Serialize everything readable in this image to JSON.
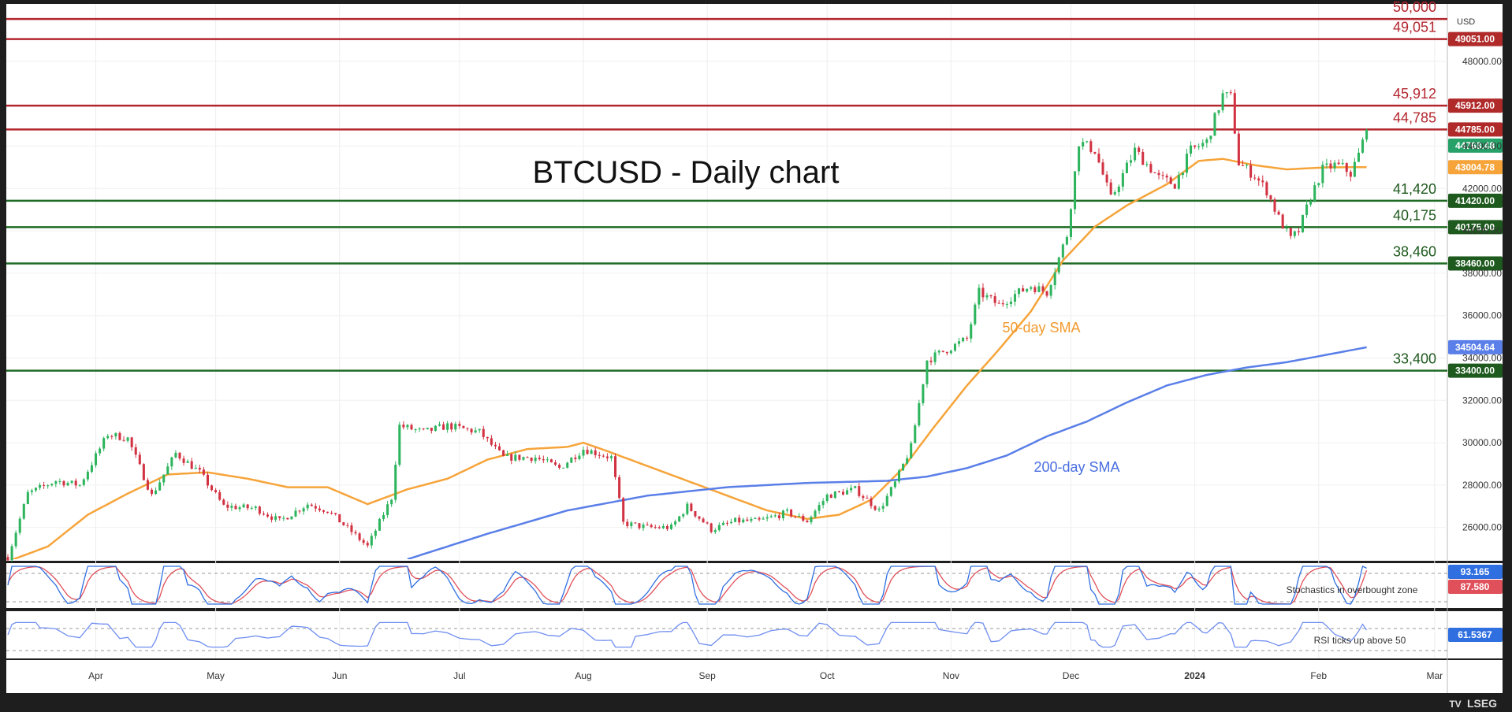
{
  "chart_data": {
    "type": "candlestick",
    "title": "BTCUSD - Daily chart",
    "currency_label": "USD",
    "ylim": [
      24500,
      50600
    ],
    "y_ticks": [
      "26000.00",
      "28000.00",
      "30000.00",
      "32000.00",
      "34000.00",
      "36000.00",
      "38000.00",
      "40000.00",
      "42000.00",
      "44000.00",
      "48000.00"
    ],
    "x_labels": [
      {
        "label": "Apr",
        "day": 22
      },
      {
        "label": "May",
        "day": 52
      },
      {
        "label": "Jun",
        "day": 83
      },
      {
        "label": "Jul",
        "day": 113
      },
      {
        "label": "Aug",
        "day": 144
      },
      {
        "label": "Sep",
        "day": 175
      },
      {
        "label": "Oct",
        "day": 205
      },
      {
        "label": "Nov",
        "day": 236
      },
      {
        "label": "Dec",
        "day": 266
      },
      {
        "label": "2024",
        "day": 297
      },
      {
        "label": "Feb",
        "day": 328
      },
      {
        "label": "Mar",
        "day": 357
      }
    ],
    "last_day": 340,
    "levels": [
      {
        "label": "50,000",
        "value": 50000,
        "badge": "",
        "type": "resistance"
      },
      {
        "label": "49,051",
        "value": 49051,
        "badge": "49051.00",
        "type": "resistance"
      },
      {
        "label": "45,912",
        "value": 45912,
        "badge": "45912.00",
        "type": "resistance"
      },
      {
        "label": "44,785",
        "value": 44785,
        "badge": "44785.00",
        "type": "resistance"
      },
      {
        "label": "41,420",
        "value": 41420,
        "badge": "41420.00",
        "type": "support"
      },
      {
        "label": "40,175",
        "value": 40175,
        "badge": "40175.00",
        "type": "support"
      },
      {
        "label": "38,460",
        "value": 38460,
        "badge": "38460.00",
        "type": "support"
      },
      {
        "label": "33,400",
        "value": 33400,
        "badge": "33400.00",
        "type": "support"
      }
    ],
    "price_keypoints": [
      [
        0,
        24600
      ],
      [
        5,
        27600
      ],
      [
        12,
        28200
      ],
      [
        18,
        28000
      ],
      [
        25,
        30400
      ],
      [
        30,
        30200
      ],
      [
        36,
        27500
      ],
      [
        42,
        29500
      ],
      [
        48,
        28600
      ],
      [
        54,
        27000
      ],
      [
        62,
        26900
      ],
      [
        68,
        26300
      ],
      [
        75,
        27100
      ],
      [
        80,
        26800
      ],
      [
        86,
        25800
      ],
      [
        90,
        25100
      ],
      [
        96,
        27400
      ],
      [
        98,
        30800
      ],
      [
        104,
        30500
      ],
      [
        110,
        30800
      ],
      [
        118,
        30500
      ],
      [
        124,
        29300
      ],
      [
        132,
        29300
      ],
      [
        138,
        28800
      ],
      [
        144,
        29700
      ],
      [
        151,
        29300
      ],
      [
        154,
        26200
      ],
      [
        160,
        26000
      ],
      [
        166,
        26000
      ],
      [
        170,
        27000
      ],
      [
        176,
        25900
      ],
      [
        182,
        26300
      ],
      [
        188,
        26300
      ],
      [
        195,
        26700
      ],
      [
        200,
        26300
      ],
      [
        205,
        27500
      ],
      [
        212,
        27800
      ],
      [
        218,
        26800
      ],
      [
        222,
        28100
      ],
      [
        226,
        29800
      ],
      [
        230,
        33900
      ],
      [
        235,
        34400
      ],
      [
        240,
        34900
      ],
      [
        243,
        37100
      ],
      [
        248,
        36500
      ],
      [
        252,
        37000
      ],
      [
        256,
        37400
      ],
      [
        260,
        37100
      ],
      [
        265,
        39800
      ],
      [
        268,
        44200
      ],
      [
        272,
        43800
      ],
      [
        276,
        41500
      ],
      [
        282,
        43800
      ],
      [
        288,
        42500
      ],
      [
        292,
        42200
      ],
      [
        296,
        43800
      ],
      [
        300,
        44200
      ],
      [
        304,
        46400
      ],
      [
        306,
        46300
      ],
      [
        308,
        43200
      ],
      [
        312,
        42600
      ],
      [
        315,
        41900
      ],
      [
        318,
        40600
      ],
      [
        321,
        39600
      ],
      [
        323,
        40000
      ],
      [
        326,
        41600
      ],
      [
        329,
        42900
      ],
      [
        332,
        43100
      ],
      [
        334,
        43000
      ],
      [
        336,
        42700
      ],
      [
        338,
        43600
      ],
      [
        340,
        44768
      ]
    ],
    "series": [
      {
        "name": "50-day SMA",
        "color": "#f6a43a",
        "last_value": 43004.78,
        "badge": "43004.78",
        "values": [
          [
            0,
            24400
          ],
          [
            10,
            25100
          ],
          [
            20,
            26600
          ],
          [
            30,
            27600
          ],
          [
            40,
            28500
          ],
          [
            50,
            28600
          ],
          [
            60,
            28300
          ],
          [
            70,
            27900
          ],
          [
            80,
            27900
          ],
          [
            90,
            27100
          ],
          [
            100,
            27800
          ],
          [
            110,
            28300
          ],
          [
            120,
            29200
          ],
          [
            130,
            29700
          ],
          [
            140,
            29800
          ],
          [
            144,
            30000
          ],
          [
            150,
            29600
          ],
          [
            160,
            28900
          ],
          [
            170,
            28200
          ],
          [
            180,
            27500
          ],
          [
            190,
            26800
          ],
          [
            200,
            26400
          ],
          [
            208,
            26600
          ],
          [
            216,
            27300
          ],
          [
            224,
            28800
          ],
          [
            232,
            30800
          ],
          [
            240,
            32700
          ],
          [
            248,
            34400
          ],
          [
            256,
            36200
          ],
          [
            264,
            38600
          ],
          [
            272,
            40200
          ],
          [
            280,
            41200
          ],
          [
            290,
            42200
          ],
          [
            298,
            43300
          ],
          [
            304,
            43400
          ],
          [
            312,
            43100
          ],
          [
            320,
            42900
          ],
          [
            330,
            43000
          ],
          [
            340,
            43004
          ]
        ]
      },
      {
        "name": "200-day SMA",
        "color": "#5a7fe8",
        "last_value": 34504.64,
        "badge": "34504.64",
        "values": [
          [
            100,
            24500
          ],
          [
            120,
            25700
          ],
          [
            140,
            26800
          ],
          [
            160,
            27500
          ],
          [
            180,
            27900
          ],
          [
            200,
            28100
          ],
          [
            210,
            28150
          ],
          [
            220,
            28200
          ],
          [
            230,
            28400
          ],
          [
            240,
            28800
          ],
          [
            250,
            29400
          ],
          [
            260,
            30300
          ],
          [
            270,
            31000
          ],
          [
            280,
            31900
          ],
          [
            290,
            32700
          ],
          [
            300,
            33200
          ],
          [
            310,
            33550
          ],
          [
            320,
            33800
          ],
          [
            330,
            34150
          ],
          [
            340,
            34504
          ]
        ]
      }
    ],
    "current_price": {
      "value": 44768.48,
      "badge": "44768.48",
      "color": "#26a269"
    },
    "annotations": {
      "sma50_label": "50-day SMA",
      "sma200_label": "200-day SMA",
      "stochastics_note": "Stochastics in overbought zone",
      "rsi_note": "RSI ticks up above 50"
    },
    "stochastics": {
      "k": 93.165,
      "d": 87.58,
      "k_badge": "93.165",
      "d_badge": "87.580"
    },
    "rsi": {
      "value": 61.5367,
      "badge": "61.5367"
    }
  },
  "branding": {
    "logo": "LSEG",
    "tv_mark": "TV"
  },
  "colors": {
    "background": "#1e1e1e",
    "panel": "#ffffff",
    "bull": "#2db45d",
    "bear": "#d23242",
    "resistance": "#b3262e",
    "support": "#1f6b24",
    "resistance_badge": "#b02a2a",
    "support_badge": "#1e5a1e",
    "sma50": "#f6a43a",
    "sma200": "#5a7fe8",
    "stoch_k": "#2f6fe0",
    "stoch_d": "#e0505a",
    "rsi": "#6f8ef0"
  }
}
